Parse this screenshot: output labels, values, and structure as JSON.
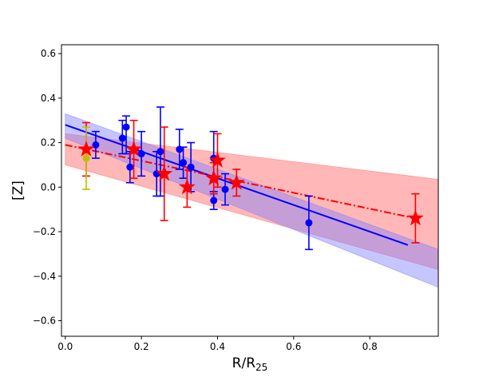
{
  "chart_data": {
    "type": "scatter",
    "title": "",
    "xlabel": "R/R",
    "xlabel_sub": "25",
    "ylabel": "[Z]",
    "xlim": [
      -0.01,
      0.98
    ],
    "ylim": [
      -0.67,
      0.64
    ],
    "x_ticks": [
      0.0,
      0.2,
      0.4,
      0.6,
      0.8
    ],
    "x_tick_labels": [
      "0.0",
      "0.2",
      "0.4",
      "0.6",
      "0.8"
    ],
    "y_ticks": [
      -0.6,
      -0.4,
      -0.2,
      0.0,
      0.2,
      0.4,
      0.6
    ],
    "y_tick_labels": [
      "−0.6",
      "−0.4",
      "−0.2",
      "0.0",
      "0.2",
      "0.4",
      "0.6"
    ],
    "grid": false,
    "colors": {
      "blue": "#0000ff",
      "blue_band": "#8080ff",
      "red": "#ff0000",
      "red_band": "#ff6f6f",
      "olive": "#bfbf00"
    },
    "bands": [
      {
        "name": "red-fit-band",
        "color": "#ff6f6f",
        "opacity": 0.5,
        "x": [
          0.0,
          0.98
        ],
        "upper": [
          0.24,
          0.035
        ],
        "lower": [
          0.1,
          -0.37
        ]
      },
      {
        "name": "blue-fit-band",
        "color": "#8080ff",
        "opacity": 0.45,
        "x": [
          0.0,
          0.98
        ],
        "upper": [
          0.33,
          -0.28
        ],
        "lower": [
          0.22,
          -0.45
        ]
      }
    ],
    "fit_lines": [
      {
        "name": "blue-fit-line",
        "color": "#0000ff",
        "dash": "solid",
        "x": [
          0.0,
          0.9
        ],
        "y": [
          0.28,
          -0.26
        ]
      },
      {
        "name": "red-fit-line",
        "color": "#ff0000",
        "dash": "dashdot",
        "x": [
          0.0,
          0.92
        ],
        "y": [
          0.19,
          -0.14
        ]
      }
    ],
    "series": [
      {
        "name": "blue-points",
        "marker": "circle",
        "color": "#0000ff",
        "points": [
          {
            "x": 0.08,
            "y": 0.19,
            "lo": 0.13,
            "hi": 0.25
          },
          {
            "x": 0.15,
            "y": 0.22,
            "lo": 0.15,
            "hi": 0.3
          },
          {
            "x": 0.16,
            "y": 0.27,
            "lo": 0.15,
            "hi": 0.32
          },
          {
            "x": 0.17,
            "y": 0.09,
            "lo": 0.02,
            "hi": 0.16
          },
          {
            "x": 0.2,
            "y": 0.15,
            "lo": 0.05,
            "hi": 0.25
          },
          {
            "x": 0.24,
            "y": 0.06,
            "lo": -0.04,
            "hi": 0.16
          },
          {
            "x": 0.25,
            "y": 0.16,
            "lo": -0.04,
            "hi": 0.36
          },
          {
            "x": 0.3,
            "y": 0.17,
            "lo": 0.08,
            "hi": 0.26
          },
          {
            "x": 0.31,
            "y": 0.11,
            "lo": 0.04,
            "hi": 0.18
          },
          {
            "x": 0.33,
            "y": 0.09,
            "lo": -0.02,
            "hi": 0.2
          },
          {
            "x": 0.39,
            "y": 0.13,
            "lo": 0.03,
            "hi": 0.25
          },
          {
            "x": 0.39,
            "y": -0.06,
            "lo": -0.1,
            "hi": -0.02
          },
          {
            "x": 0.42,
            "y": -0.01,
            "lo": -0.08,
            "hi": 0.06
          },
          {
            "x": 0.64,
            "y": -0.16,
            "lo": -0.28,
            "hi": -0.04
          }
        ]
      },
      {
        "name": "red-stars",
        "marker": "star",
        "color": "#ff0000",
        "points": [
          {
            "x": 0.055,
            "y": 0.17,
            "lo": 0.05,
            "hi": 0.29
          },
          {
            "x": 0.18,
            "y": 0.17,
            "lo": 0.04,
            "hi": 0.3
          },
          {
            "x": 0.26,
            "y": 0.06,
            "lo": -0.15,
            "hi": 0.27
          },
          {
            "x": 0.32,
            "y": 0.0,
            "lo": -0.09,
            "hi": 0.09
          },
          {
            "x": 0.39,
            "y": 0.04,
            "lo": -0.03,
            "hi": 0.11
          },
          {
            "x": 0.4,
            "y": 0.12,
            "lo": 0.0,
            "hi": 0.24
          },
          {
            "x": 0.45,
            "y": 0.02,
            "lo": -0.04,
            "hi": 0.08
          },
          {
            "x": 0.92,
            "y": -0.14,
            "lo": -0.25,
            "hi": -0.03
          }
        ]
      },
      {
        "name": "olive-point",
        "marker": "circle",
        "color": "#bfbf00",
        "points": [
          {
            "x": 0.055,
            "y": 0.13,
            "lo": -0.01,
            "hi": 0.27
          }
        ]
      }
    ]
  }
}
